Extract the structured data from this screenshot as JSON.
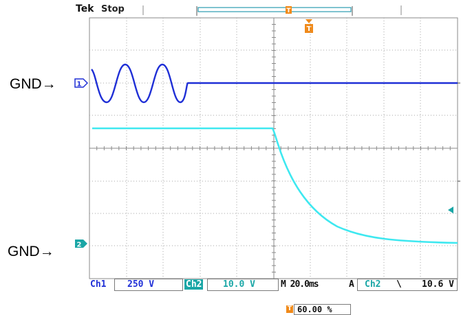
{
  "header": {
    "brand": "Tek",
    "status": "Stop"
  },
  "labels": {
    "gnd_top": "GND→",
    "gnd_bottom": "GND→"
  },
  "markers": {
    "ch1": "1",
    "ch2": "2",
    "trigger": "T"
  },
  "readout": {
    "ch1_label": "Ch1",
    "ch1_scale": "250 V",
    "ch2_label": "Ch2",
    "ch2_scale": "10.0 V",
    "timebase": "M 20.0ms",
    "trigger_mode": "A",
    "trigger_source": "Ch2",
    "trigger_slope": "\\",
    "trigger_level": "10.6 V",
    "trigger_position": "60.00 %"
  },
  "colors": {
    "ch1": "#1f2fd6",
    "ch2": "#3ee8f0",
    "ch2_marker": "#1aa6a6",
    "trigger": "#f08a1a",
    "grid": "#9a9a9a"
  }
}
